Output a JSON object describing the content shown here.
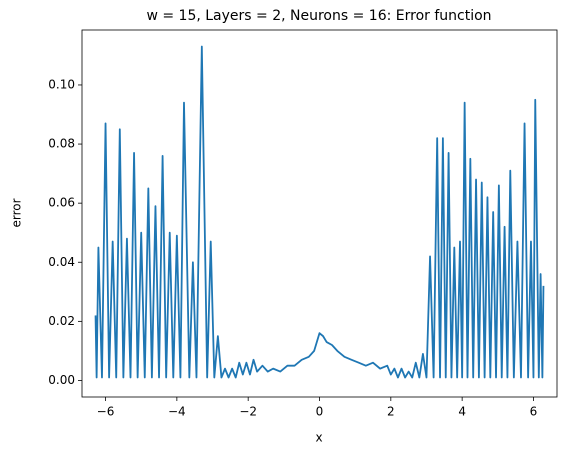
{
  "chart_data": {
    "type": "line",
    "title": "w = 15, Layers = 2, Neurons = 16: Error function",
    "xlabel": "x",
    "ylabel": "error",
    "x": [
      -6.28,
      -6.25,
      -6.2,
      -6.1,
      -6.0,
      -5.9,
      -5.8,
      -5.7,
      -5.6,
      -5.5,
      -5.4,
      -5.3,
      -5.2,
      -5.1,
      -5.0,
      -4.9,
      -4.8,
      -4.7,
      -4.6,
      -4.5,
      -4.4,
      -4.3,
      -4.2,
      -4.1,
      -4.0,
      -3.9,
      -3.8,
      -3.65,
      -3.55,
      -3.45,
      -3.3,
      -3.15,
      -3.05,
      -2.95,
      -2.85,
      -2.75,
      -2.65,
      -2.55,
      -2.45,
      -2.35,
      -2.25,
      -2.15,
      -2.05,
      -1.95,
      -1.85,
      -1.75,
      -1.6,
      -1.45,
      -1.3,
      -1.1,
      -0.9,
      -0.7,
      -0.5,
      -0.3,
      -0.15,
      0,
      0.1,
      0.2,
      0.35,
      0.5,
      0.7,
      0.9,
      1.1,
      1.3,
      1.5,
      1.7,
      1.9,
      2.0,
      2.1,
      2.2,
      2.3,
      2.4,
      2.5,
      2.6,
      2.7,
      2.8,
      2.9,
      3.0,
      3.1,
      3.2,
      3.3,
      3.38,
      3.46,
      3.54,
      3.62,
      3.7,
      3.78,
      3.86,
      3.94,
      4.0,
      4.07,
      4.15,
      4.23,
      4.31,
      4.39,
      4.47,
      4.55,
      4.63,
      4.71,
      4.79,
      4.87,
      4.95,
      5.03,
      5.11,
      5.19,
      5.27,
      5.35,
      5.45,
      5.55,
      5.65,
      5.75,
      5.85,
      5.93,
      6.0,
      6.05,
      6.15,
      6.2,
      6.25,
      6.28
    ],
    "series": [
      {
        "color": "#1f77b4",
        "values": [
          0.022,
          0.001,
          0.045,
          0.001,
          0.087,
          0.001,
          0.047,
          0.001,
          0.085,
          0.001,
          0.048,
          0.001,
          0.077,
          0.001,
          0.05,
          0.001,
          0.065,
          0.001,
          0.059,
          0.001,
          0.076,
          0.001,
          0.05,
          0.001,
          0.049,
          0.001,
          0.094,
          0.001,
          0.04,
          0.001,
          0.113,
          0.001,
          0.047,
          0.001,
          0.015,
          0.001,
          0.004,
          0.001,
          0.004,
          0.001,
          0.006,
          0.002,
          0.006,
          0.002,
          0.007,
          0.003,
          0.005,
          0.003,
          0.004,
          0.003,
          0.005,
          0.005,
          0.007,
          0.008,
          0.01,
          0.016,
          0.015,
          0.013,
          0.012,
          0.01,
          0.008,
          0.007,
          0.006,
          0.005,
          0.006,
          0.004,
          0.005,
          0.002,
          0.004,
          0.001,
          0.004,
          0.001,
          0.003,
          0.001,
          0.006,
          0.001,
          0.009,
          0.001,
          0.042,
          0.001,
          0.082,
          0.001,
          0.082,
          0.001,
          0.077,
          0.001,
          0.045,
          0.001,
          0.047,
          0.001,
          0.094,
          0.001,
          0.075,
          0.001,
          0.068,
          0.001,
          0.067,
          0.001,
          0.062,
          0.001,
          0.057,
          0.001,
          0.066,
          0.001,
          0.052,
          0.001,
          0.071,
          0.001,
          0.047,
          0.001,
          0.087,
          0.001,
          0.047,
          0.001,
          0.095,
          0.001,
          0.036,
          0.001,
          0.032
        ]
      }
    ],
    "xlim": [
      -6.66,
      6.66
    ],
    "xticks": [
      {
        "value": -6,
        "label": "−6"
      },
      {
        "value": -4,
        "label": "−4"
      },
      {
        "value": -2,
        "label": "−2"
      },
      0,
      2,
      4,
      6
    ],
    "ylim": [
      -0.0056,
      0.1186
    ],
    "yticks": [
      {
        "value": 0,
        "label": "0.00"
      },
      {
        "value": 0.02,
        "label": "0.02"
      },
      {
        "value": 0.04,
        "label": "0.04"
      },
      {
        "value": 0.06,
        "label": "0.06"
      },
      {
        "value": 0.08,
        "label": "0.08"
      },
      {
        "value": 0.1,
        "label": "0.10"
      }
    ],
    "grid": false
  }
}
